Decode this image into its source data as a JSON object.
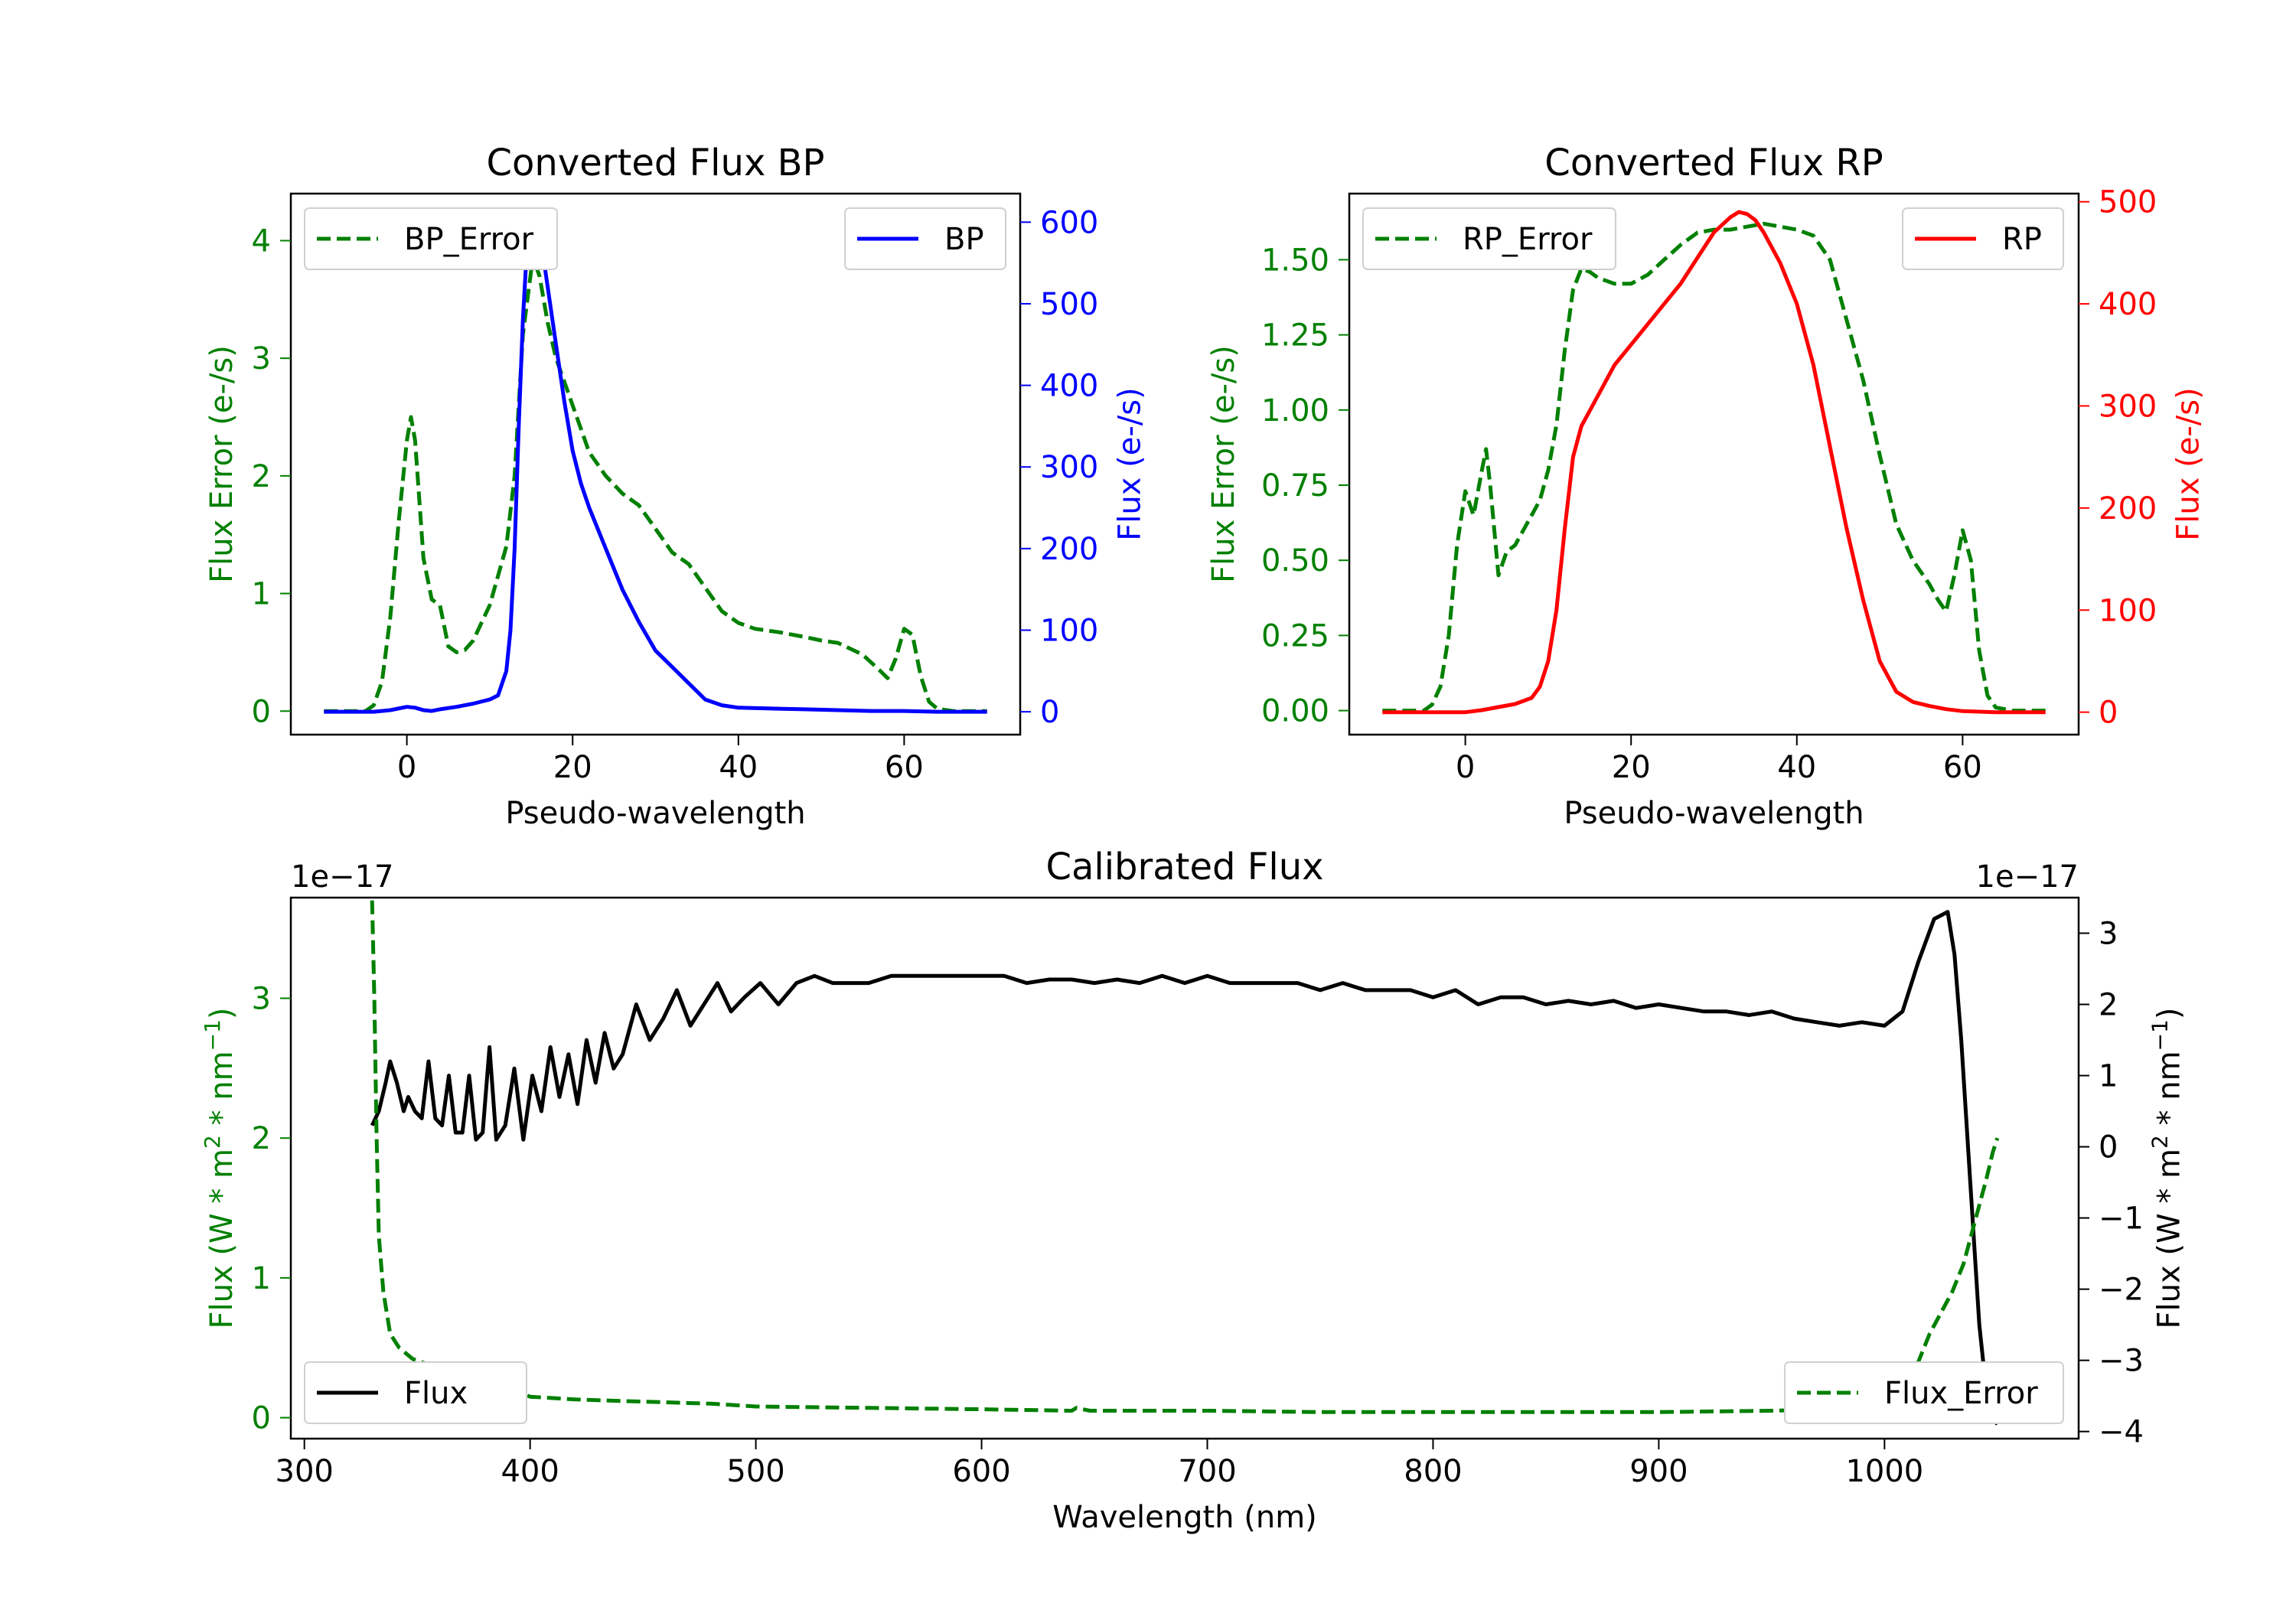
{
  "chart_data": [
    {
      "type": "line",
      "title": "Converted Flux BP",
      "xlabel": "Pseudo-wavelength",
      "xlim": [
        -14,
        74
      ],
      "xticks": [
        "0",
        "20",
        "40",
        "60"
      ],
      "left_axis": {
        "label": "Flux Error (e-/s)",
        "color": "#008000",
        "ylim": [
          -0.2,
          4.4
        ],
        "ticks": [
          "0",
          "1",
          "2",
          "3",
          "4"
        ]
      },
      "right_axis": {
        "label": "Flux (e-/s)",
        "color": "#0000ff",
        "ylim": [
          -28,
          635
        ],
        "ticks": [
          "0",
          "100",
          "200",
          "300",
          "400",
          "500",
          "600"
        ]
      },
      "series": [
        {
          "name": "BP_Error",
          "axis": "left",
          "color": "#008000",
          "style": "dashed",
          "x": [
            -10,
            -5,
            -4,
            -3,
            -2,
            -1,
            0,
            0.5,
            1,
            2,
            3,
            4,
            5,
            6,
            7,
            8,
            10,
            12,
            13,
            14,
            15,
            15.5,
            16,
            17,
            18,
            19,
            20,
            22,
            24,
            26,
            28,
            30,
            32,
            34,
            36,
            38,
            40,
            42,
            45,
            48,
            50,
            52,
            55,
            57,
            58,
            59,
            60,
            61,
            62,
            63,
            64,
            66,
            68,
            70
          ],
          "values": [
            0,
            0,
            0.05,
            0.25,
            0.8,
            1.6,
            2.3,
            2.5,
            2.3,
            1.3,
            0.95,
            0.9,
            0.55,
            0.5,
            0.52,
            0.6,
            0.9,
            1.4,
            2.0,
            3.2,
            3.75,
            3.8,
            3.7,
            3.3,
            3.0,
            2.8,
            2.6,
            2.2,
            2.0,
            1.85,
            1.75,
            1.55,
            1.35,
            1.25,
            1.05,
            0.85,
            0.75,
            0.7,
            0.67,
            0.63,
            0.6,
            0.58,
            0.48,
            0.35,
            0.28,
            0.45,
            0.7,
            0.65,
            0.3,
            0.08,
            0.02,
            0,
            0,
            0
          ]
        },
        {
          "name": "BP",
          "axis": "right",
          "color": "#0000ff",
          "style": "solid",
          "x": [
            -10,
            -4,
            -2,
            0,
            1,
            2,
            3,
            4,
            6,
            8,
            10,
            11,
            12,
            12.5,
            13,
            13.5,
            14,
            14.5,
            15,
            15.5,
            16,
            16.5,
            17,
            18,
            19,
            20,
            21,
            22,
            24,
            26,
            28,
            30,
            32,
            34,
            36,
            38,
            40,
            44,
            48,
            52,
            56,
            60,
            64,
            70
          ],
          "values": [
            0,
            0,
            2,
            6,
            5,
            2,
            1,
            3,
            6,
            10,
            15,
            20,
            50,
            100,
            200,
            350,
            480,
            570,
            600,
            598,
            580,
            555,
            520,
            450,
            380,
            320,
            280,
            250,
            200,
            150,
            110,
            75,
            55,
            35,
            15,
            8,
            5,
            4,
            3,
            2,
            1,
            1,
            0,
            0
          ]
        }
      ],
      "legends": [
        {
          "entries": [
            "BP_Error"
          ],
          "position": "upper left"
        },
        {
          "entries": [
            "BP"
          ],
          "position": "upper right"
        }
      ]
    },
    {
      "type": "line",
      "title": "Converted Flux RP",
      "xlabel": "Pseudo-wavelength",
      "xlim": [
        -14,
        74
      ],
      "xticks": [
        "0",
        "20",
        "40",
        "60"
      ],
      "left_axis": {
        "label": "Flux Error (e-/s)",
        "color": "#008000",
        "ylim": [
          -0.08,
          1.72
        ],
        "ticks": [
          "0.00",
          "0.25",
          "0.50",
          "0.75",
          "1.00",
          "1.25",
          "1.50"
        ]
      },
      "right_axis": {
        "label": "Flux (e-/s)",
        "color": "#ff0000",
        "ylim": [
          -22,
          508
        ],
        "ticks": [
          "0",
          "100",
          "200",
          "300",
          "400",
          "500"
        ]
      },
      "series": [
        {
          "name": "RP_Error",
          "axis": "left",
          "color": "#008000",
          "style": "dashed",
          "x": [
            -10,
            -5,
            -4,
            -3,
            -2,
            -1,
            0,
            1,
            2,
            2.5,
            3,
            4,
            5,
            6,
            7,
            8,
            9,
            10,
            11,
            12,
            13,
            14,
            15,
            16,
            18,
            20,
            22,
            24,
            26,
            28,
            30,
            32,
            34,
            36,
            38,
            40,
            42,
            44,
            46,
            48,
            50,
            52,
            54,
            56,
            57,
            58,
            59,
            60,
            61,
            62,
            63,
            64,
            66,
            70
          ],
          "values": [
            0,
            0,
            0.02,
            0.08,
            0.25,
            0.55,
            0.73,
            0.65,
            0.8,
            0.87,
            0.75,
            0.45,
            0.53,
            0.55,
            0.6,
            0.65,
            0.7,
            0.8,
            0.95,
            1.2,
            1.4,
            1.47,
            1.46,
            1.44,
            1.42,
            1.42,
            1.45,
            1.5,
            1.55,
            1.59,
            1.6,
            1.6,
            1.61,
            1.62,
            1.61,
            1.6,
            1.58,
            1.5,
            1.3,
            1.1,
            0.85,
            0.62,
            0.5,
            0.42,
            0.37,
            0.33,
            0.45,
            0.6,
            0.5,
            0.2,
            0.05,
            0.01,
            0,
            0
          ]
        },
        {
          "name": "RP",
          "axis": "right",
          "color": "#ff0000",
          "style": "solid",
          "x": [
            -10,
            0,
            2,
            4,
            6,
            8,
            9,
            10,
            11,
            12,
            13,
            14,
            16,
            18,
            20,
            22,
            24,
            26,
            28,
            30,
            32,
            33,
            34,
            35,
            36,
            38,
            40,
            42,
            44,
            46,
            48,
            50,
            52,
            54,
            56,
            58,
            60,
            64,
            70
          ],
          "values": [
            0,
            0,
            2,
            5,
            8,
            14,
            25,
            50,
            100,
            180,
            250,
            280,
            310,
            340,
            360,
            380,
            400,
            420,
            445,
            470,
            485,
            490,
            488,
            482,
            470,
            440,
            400,
            340,
            260,
            180,
            110,
            50,
            20,
            10,
            6,
            3,
            1,
            0,
            0
          ]
        }
      ],
      "legends": [
        {
          "entries": [
            "RP_Error"
          ],
          "position": "upper left"
        },
        {
          "entries": [
            "RP"
          ],
          "position": "upper right"
        }
      ]
    },
    {
      "type": "line",
      "title": "Calibrated Flux",
      "xlabel": "Wavelength (nm)",
      "xlim": [
        294,
        1086
      ],
      "xticks": [
        "300",
        "400",
        "500",
        "600",
        "700",
        "800",
        "900",
        "1000"
      ],
      "left_axis": {
        "label": "Flux (W * m² * nm⁻¹)",
        "label_parts": [
          "Flux (W * m",
          "2",
          " * nm",
          "−1",
          ")"
        ],
        "color": "#008000",
        "ylim": [
          -0.15,
          3.72
        ],
        "ticks": [
          "0",
          "1",
          "2",
          "3"
        ],
        "offset": "1e−17"
      },
      "right_axis": {
        "label": "Flux (W * m² * nm⁻¹)",
        "label_parts": [
          "Flux (W * m",
          "2",
          " * nm",
          "−1",
          ")"
        ],
        "color": "#000000",
        "ylim": [
          -4.1,
          3.5
        ],
        "ticks": [
          "−4",
          "−3",
          "−2",
          "−1",
          "0",
          "1",
          "2",
          "3"
        ],
        "offset": "1e−17"
      },
      "series": [
        {
          "name": "Flux",
          "axis": "right",
          "color": "#000000",
          "style": "solid",
          "x": [
            330,
            333,
            336,
            338,
            341,
            344,
            346,
            349,
            352,
            355,
            358,
            361,
            364,
            367,
            370,
            373,
            376,
            379,
            382,
            385,
            389,
            393,
            397,
            401,
            405,
            409,
            413,
            417,
            421,
            425,
            429,
            433,
            437,
            441,
            447,
            453,
            459,
            465,
            471,
            477,
            483,
            489,
            495,
            502,
            510,
            518,
            526,
            534,
            542,
            550,
            560,
            570,
            580,
            590,
            600,
            610,
            620,
            630,
            640,
            650,
            660,
            670,
            680,
            690,
            700,
            710,
            720,
            730,
            740,
            750,
            760,
            770,
            780,
            790,
            800,
            810,
            820,
            830,
            840,
            850,
            860,
            870,
            880,
            890,
            900,
            910,
            920,
            930,
            940,
            950,
            960,
            970,
            980,
            990,
            1000,
            1008,
            1015,
            1022,
            1028,
            1031,
            1034,
            1038,
            1042,
            1046,
            1050
          ],
          "values": [
            0.3,
            0.5,
            0.9,
            1.2,
            0.9,
            0.5,
            0.7,
            0.5,
            0.4,
            1.2,
            0.4,
            0.3,
            1.0,
            0.2,
            0.2,
            1.0,
            0.1,
            0.2,
            1.4,
            0.1,
            0.3,
            1.1,
            0.1,
            1.0,
            0.5,
            1.4,
            0.7,
            1.3,
            0.6,
            1.5,
            0.9,
            1.6,
            1.1,
            1.3,
            2.0,
            1.5,
            1.8,
            2.2,
            1.7,
            2.0,
            2.3,
            1.9,
            2.1,
            2.3,
            2.0,
            2.3,
            2.4,
            2.3,
            2.3,
            2.3,
            2.4,
            2.4,
            2.4,
            2.4,
            2.4,
            2.4,
            2.3,
            2.35,
            2.35,
            2.3,
            2.35,
            2.3,
            2.4,
            2.3,
            2.4,
            2.3,
            2.3,
            2.3,
            2.3,
            2.2,
            2.3,
            2.2,
            2.2,
            2.2,
            2.1,
            2.2,
            2.0,
            2.1,
            2.1,
            2.0,
            2.05,
            2.0,
            2.05,
            1.95,
            2.0,
            1.95,
            1.9,
            1.9,
            1.85,
            1.9,
            1.8,
            1.75,
            1.7,
            1.75,
            1.7,
            1.9,
            2.6,
            3.2,
            3.3,
            2.7,
            1.5,
            -0.5,
            -2.5,
            -3.7,
            -3.9
          ]
        },
        {
          "name": "Flux_Error",
          "axis": "left",
          "color": "#008000",
          "style": "dashed",
          "x": [
            330,
            331,
            332,
            333,
            335,
            338,
            342,
            348,
            355,
            365,
            375,
            383,
            386,
            390,
            400,
            420,
            440,
            460,
            480,
            500,
            550,
            600,
            640,
            642,
            648,
            700,
            750,
            800,
            850,
            900,
            950,
            980,
            1000,
            1010,
            1015,
            1020,
            1025,
            1030,
            1035,
            1040,
            1045,
            1048,
            1050
          ],
          "values": [
            3.7,
            3.0,
            2.0,
            1.3,
            0.9,
            0.6,
            0.5,
            0.42,
            0.38,
            0.33,
            0.3,
            0.35,
            0.28,
            0.22,
            0.15,
            0.13,
            0.12,
            0.11,
            0.1,
            0.08,
            0.07,
            0.06,
            0.05,
            0.07,
            0.05,
            0.05,
            0.04,
            0.04,
            0.04,
            0.04,
            0.05,
            0.06,
            0.1,
            0.2,
            0.4,
            0.6,
            0.75,
            0.9,
            1.1,
            1.4,
            1.7,
            1.9,
            2.0
          ]
        }
      ],
      "legends": [
        {
          "entries": [
            "Flux"
          ],
          "position": "lower left"
        },
        {
          "entries": [
            "Flux_Error"
          ],
          "position": "lower right"
        }
      ]
    }
  ]
}
